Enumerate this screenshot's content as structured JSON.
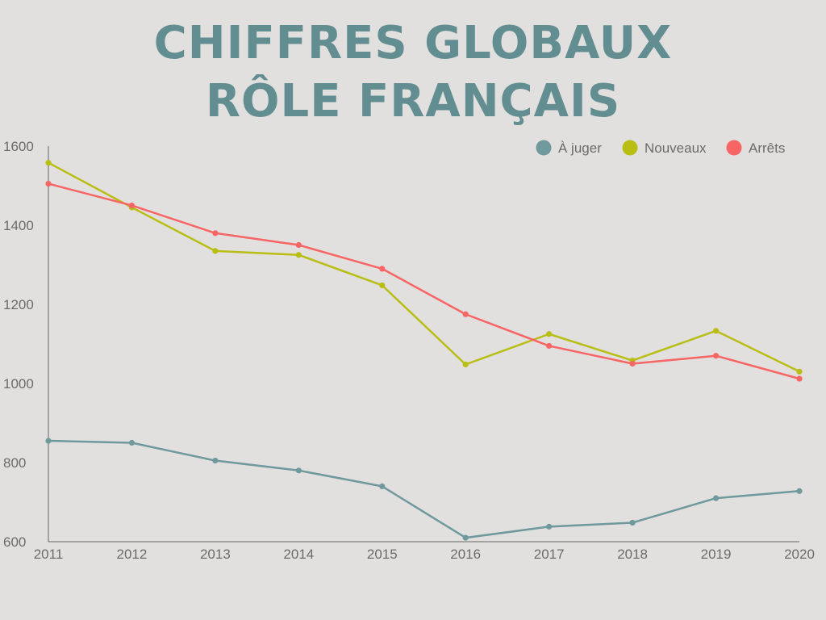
{
  "page": {
    "title_line1": "CHIFFRES GLOBAUX",
    "title_line2": "RÔLE FRANÇAIS"
  },
  "chart_data": {
    "type": "line",
    "title": "CHIFFRES GLOBAUX RÔLE FRANÇAIS",
    "x": [
      "2011",
      "2012",
      "2013",
      "2014",
      "2015",
      "2016",
      "2017",
      "2018",
      "2019",
      "2020"
    ],
    "series": [
      {
        "name": "À juger",
        "color": "#6f999c",
        "values": [
          855,
          850,
          805,
          780,
          740,
          610,
          638,
          648,
          710,
          728
        ]
      },
      {
        "name": "Nouveaux",
        "color": "#b8be14",
        "values": [
          1558,
          1445,
          1335,
          1325,
          1248,
          1048,
          1125,
          1058,
          1133,
          1030
        ]
      },
      {
        "name": "Arrêts",
        "color": "#f76565",
        "values": [
          1505,
          1450,
          1380,
          1350,
          1290,
          1175,
          1095,
          1050,
          1070,
          1012
        ]
      }
    ],
    "y_ticks": [
      600,
      800,
      1000,
      1200,
      1400,
      1600
    ],
    "ylim": [
      600,
      1600
    ],
    "xlabel": "",
    "ylabel": "",
    "grid": false,
    "legend_position": "top-right",
    "axis_color": "#666666"
  }
}
